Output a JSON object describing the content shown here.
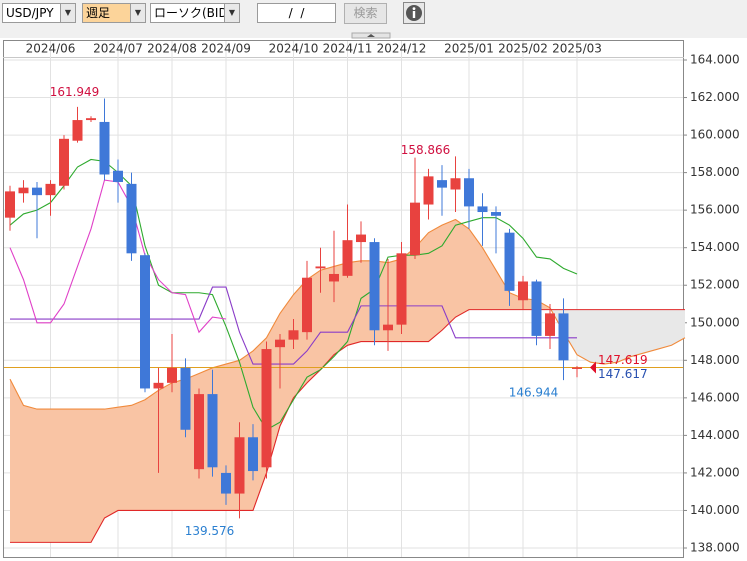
{
  "toolbar": {
    "symbol": "USD/JPY",
    "period": "週足",
    "chart_style": "ローソク(BID)",
    "date": "/  /",
    "search": "検索"
  },
  "chart_data": {
    "type": "candlestick",
    "categories": [
      null,
      null,
      null,
      "2024/06",
      null,
      null,
      null,
      null,
      "2024/07",
      null,
      null,
      null,
      "2024/08",
      null,
      null,
      null,
      "2024/09",
      null,
      null,
      null,
      null,
      "2024/10",
      null,
      null,
      null,
      "2024/11",
      null,
      null,
      null,
      "2024/12",
      null,
      null,
      null,
      null,
      "2025/01",
      null,
      null,
      null,
      "2025/02",
      null,
      null,
      null,
      "2025/03",
      null,
      null,
      null,
      null,
      null,
      null,
      null,
      null
    ],
    "open": [
      155.6,
      156.9,
      157.2,
      156.8,
      157.3,
      159.7,
      160.8,
      160.7,
      158.1,
      157.4,
      153.6,
      146.5,
      146.8,
      147.6,
      142.2,
      146.2,
      142.0,
      140.9,
      143.9,
      142.3,
      148.7,
      149.1,
      149.5,
      152.9,
      152.2,
      152.5,
      154.3,
      154.3,
      149.6,
      149.9,
      153.6,
      156.3,
      157.6,
      157.1,
      157.7,
      156.2,
      155.9,
      154.8,
      151.2,
      152.2,
      149.3,
      150.5,
      147.6,
      null,
      null,
      null,
      null,
      null,
      null,
      null,
      null
    ],
    "high": [
      157.3,
      157.6,
      157.5,
      157.6,
      160.0,
      161.5,
      161.0,
      161.949,
      158.7,
      158.0,
      153.7,
      147.6,
      149.4,
      148.1,
      146.5,
      147.5,
      142.4,
      144.7,
      144.6,
      149.0,
      149.4,
      150.2,
      153.3,
      154.0,
      154.9,
      156.3,
      155.4,
      154.5,
      153.4,
      154.3,
      158.8,
      158.2,
      158.4,
      158.866,
      158.2,
      156.9,
      156.2,
      155.0,
      152.5,
      152.3,
      151.0,
      151.3,
      147.7,
      null,
      null,
      null,
      null,
      null,
      null,
      null,
      null
    ],
    "low": [
      154.9,
      156.4,
      154.5,
      155.7,
      157.1,
      159.6,
      160.7,
      157.6,
      156.4,
      153.3,
      146.3,
      142.0,
      146.3,
      143.9,
      141.7,
      141.8,
      140.3,
      139.576,
      141.6,
      141.7,
      146.5,
      148.6,
      149.1,
      151.6,
      151.1,
      152.4,
      153.2,
      148.8,
      148.5,
      149.4,
      153.4,
      155.5,
      155.7,
      155.9,
      155.0,
      154.1,
      153.7,
      150.9,
      150.7,
      148.8,
      148.6,
      146.944,
      147.1,
      null,
      null,
      null,
      null,
      null,
      null,
      null,
      null
    ],
    "close": [
      157.0,
      157.2,
      156.8,
      157.4,
      159.8,
      160.8,
      160.9,
      157.9,
      157.5,
      153.7,
      146.5,
      146.8,
      147.6,
      144.3,
      146.2,
      142.3,
      140.9,
      143.9,
      142.1,
      148.6,
      149.1,
      149.6,
      152.4,
      153.0,
      152.6,
      154.4,
      154.7,
      149.6,
      149.9,
      153.7,
      156.4,
      157.8,
      157.2,
      157.7,
      156.2,
      155.9,
      155.7,
      151.7,
      152.2,
      149.3,
      150.5,
      148.0,
      147.619,
      null,
      null,
      null,
      null,
      null,
      null,
      null,
      null
    ],
    "up_color": "#e8423f",
    "down_color": "#3f78d8",
    "series": [
      {
        "color": "#2eaa2e",
        "values": [
          155.2,
          155.8,
          156.0,
          156.4,
          157.3,
          158.3,
          158.7,
          158.6,
          158.0,
          157.3,
          154.1,
          152.0,
          151.6,
          151.6,
          151.6,
          151.5,
          149.8,
          147.9,
          145.5,
          144.3,
          144.7,
          145.9,
          147.1,
          147.5,
          148.2,
          149.0,
          151.3,
          151.8,
          153.5,
          153.6,
          153.6,
          153.7,
          154.1,
          155.2,
          155.4,
          155.6,
          155.6,
          155.2,
          154.5,
          153.5,
          153.4,
          152.9,
          152.6,
          null,
          null,
          null,
          null,
          null,
          null,
          null,
          null
        ]
      },
      {
        "color": "#8a3cc8",
        "values": [
          150.2,
          150.2,
          150.2,
          150.2,
          150.2,
          150.2,
          150.2,
          150.2,
          150.2,
          150.2,
          150.2,
          150.2,
          150.2,
          150.2,
          150.2,
          151.9,
          151.9,
          149.5,
          147.8,
          147.8,
          147.8,
          147.8,
          148.5,
          149.5,
          149.5,
          149.5,
          150.9,
          150.9,
          150.9,
          150.9,
          150.9,
          150.9,
          150.9,
          149.2,
          149.2,
          149.2,
          149.2,
          149.2,
          149.2,
          149.2,
          149.2,
          149.2,
          149.2,
          null,
          null,
          null,
          null,
          null,
          null,
          null,
          null
        ]
      },
      {
        "color": "#e040c8",
        "values": [
          154.0,
          152.3,
          150.0,
          150.0,
          151.0,
          153.0,
          155.0,
          157.6,
          157.5,
          156.2,
          153.6,
          152.3,
          151.6,
          151.5,
          149.5,
          150.3,
          150.2,
          null,
          null,
          null,
          null,
          null,
          null,
          null,
          null,
          null,
          null,
          null,
          null,
          null,
          null,
          null,
          null,
          null,
          null,
          null,
          null,
          null,
          null,
          null,
          null,
          null,
          null,
          null,
          null,
          null,
          null,
          null,
          null,
          null,
          null
        ]
      }
    ],
    "cloud": {
      "span_a": {
        "color": "#f08a3c",
        "values": [
          147.0,
          145.6,
          145.4,
          145.4,
          145.4,
          145.4,
          145.4,
          145.4,
          145.5,
          145.6,
          145.9,
          146.4,
          146.8,
          147.0,
          147.3,
          147.6,
          147.8,
          148.0,
          148.5,
          149.2,
          150.5,
          151.5,
          152.3,
          152.8,
          153.0,
          153.2,
          153.3,
          153.3,
          153.2,
          153.4,
          154.0,
          154.8,
          155.2,
          155.5,
          155.0,
          154.0,
          152.8,
          151.6,
          151.3,
          151.2,
          150.8,
          149.5,
          148.3,
          147.9,
          147.8,
          147.9,
          148.2,
          148.4,
          148.6,
          148.8,
          149.2
        ]
      },
      "span_b": {
        "color": "#e02828",
        "values": [
          138.3,
          138.3,
          138.3,
          138.3,
          138.3,
          138.3,
          138.3,
          139.6,
          140.0,
          140.0,
          140.0,
          140.0,
          140.0,
          140.0,
          140.0,
          140.0,
          140.0,
          140.0,
          140.0,
          142.0,
          144.5,
          146.0,
          146.8,
          147.5,
          148.3,
          148.8,
          149.0,
          149.0,
          149.0,
          149.0,
          149.0,
          149.0,
          149.6,
          150.3,
          150.7,
          150.7,
          150.7,
          150.7,
          150.7,
          150.7,
          150.7,
          150.7,
          150.7,
          150.7,
          150.7,
          150.7,
          150.7,
          150.7,
          150.7,
          150.7,
          150.7
        ]
      },
      "fill_up": "#f9c4a4",
      "fill_down": "#e8e8e8"
    },
    "annotations": [
      161.949,
      158.866,
      139.576,
      146.944
    ],
    "high_label_color": "#d01040",
    "low_label_color": "#2a7fd0",
    "price_lines": [
      {
        "value": 147.619,
        "color": "#e0102a"
      },
      {
        "value": 147.617,
        "color": "#2850b0"
      }
    ],
    "current_line_color": "#e0a020",
    "ylim": [
      138,
      164
    ],
    "yticks": [
      {
        "value": 138,
        "label": "138.000"
      },
      {
        "value": 140,
        "label": "140.000"
      },
      {
        "value": 142,
        "label": "142.000"
      },
      {
        "value": 144,
        "label": "144.000"
      },
      {
        "value": 146,
        "label": "146.000"
      },
      {
        "value": 148,
        "label": "148.000"
      },
      {
        "value": 150,
        "label": "150.000"
      },
      {
        "value": 152,
        "label": "152.000"
      },
      {
        "value": 154,
        "label": "154.000"
      },
      {
        "value": 156,
        "label": "156.000"
      },
      {
        "value": 158,
        "label": "158.000"
      },
      {
        "value": 160,
        "label": "160.000"
      },
      {
        "value": 162,
        "label": "162.000"
      },
      {
        "value": 164,
        "label": "164.000"
      }
    ],
    "grid": true
  }
}
